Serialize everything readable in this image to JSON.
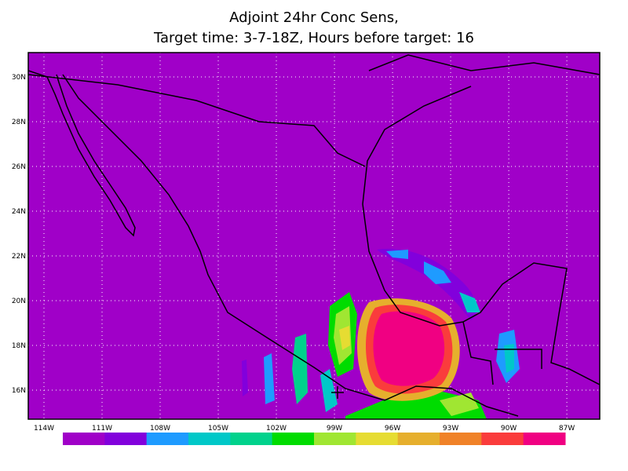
{
  "header": {
    "title": "Adjoint 24hr Conc Sens,",
    "subtitle": "Target time: 3-7-18Z, Hours before target: 16"
  },
  "map": {
    "lon_ticks": [
      {
        "value": -114,
        "label": "114W"
      },
      {
        "value": -111,
        "label": "111W"
      },
      {
        "value": -108,
        "label": "108W"
      },
      {
        "value": -105,
        "label": "105W"
      },
      {
        "value": -102,
        "label": "102W"
      },
      {
        "value": -99,
        "label": "99W"
      },
      {
        "value": -96,
        "label": "96W"
      },
      {
        "value": -93,
        "label": "93W"
      },
      {
        "value": -90,
        "label": "90W"
      },
      {
        "value": -87,
        "label": "87W"
      }
    ],
    "lat_ticks": [
      {
        "value": 16,
        "label": "16N"
      },
      {
        "value": 18,
        "label": "18N"
      },
      {
        "value": 20,
        "label": "20N"
      },
      {
        "value": 22,
        "label": "22N"
      },
      {
        "value": 24,
        "label": "24N"
      },
      {
        "value": 26,
        "label": "26N"
      },
      {
        "value": 28,
        "label": "28N"
      },
      {
        "value": 30,
        "label": "30N"
      }
    ],
    "grid": true
  },
  "colorbar": {
    "colors": [
      "#a000c8",
      "#8200dc",
      "#1e9bff",
      "#00c8c8",
      "#00d28c",
      "#00dc00",
      "#a0e632",
      "#e6dc32",
      "#e6af2d",
      "#f08228",
      "#fa3c3c",
      "#f00082"
    ]
  }
}
